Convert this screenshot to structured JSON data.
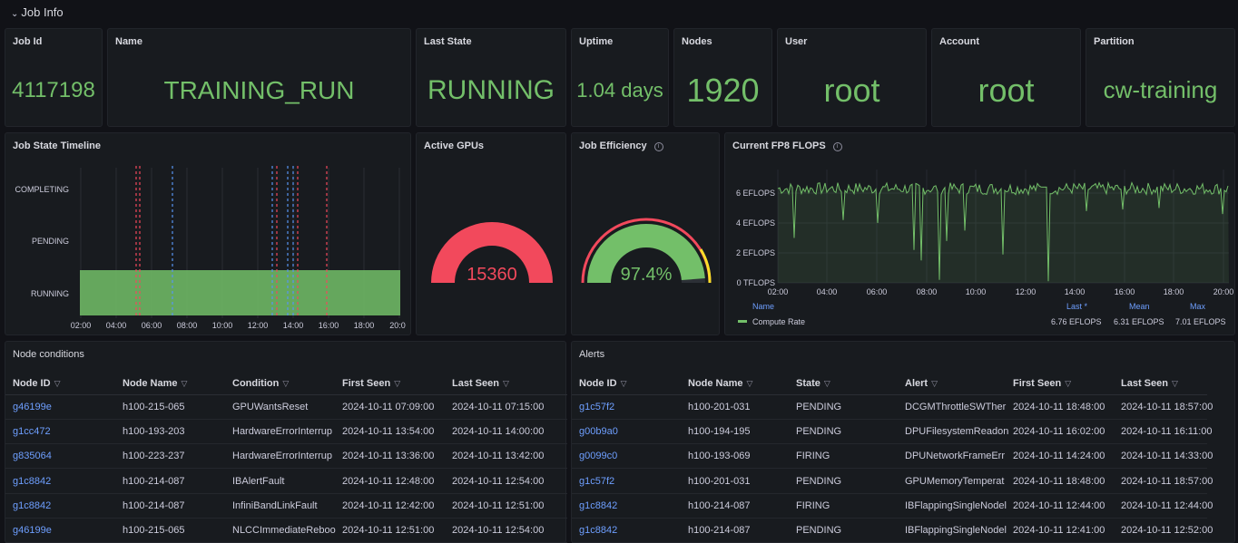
{
  "row": {
    "title": "Job Info"
  },
  "stats": {
    "job_id": {
      "title": "Job Id",
      "value": "4117198"
    },
    "name": {
      "title": "Name",
      "value": "TRAINING_RUN"
    },
    "last_state": {
      "title": "Last State",
      "value": "RUNNING"
    },
    "uptime": {
      "title": "Uptime",
      "value": "1.04 days"
    },
    "nodes": {
      "title": "Nodes",
      "value": "1920"
    },
    "user": {
      "title": "User",
      "value": "root"
    },
    "account": {
      "title": "Account",
      "value": "root"
    },
    "partition": {
      "title": "Partition",
      "value": "cw-training"
    }
  },
  "timeline": {
    "title": "Job State Timeline",
    "states": [
      "COMPLETING",
      "PENDING",
      "RUNNING"
    ],
    "ticks": [
      "02:00",
      "04:00",
      "06:00",
      "08:00",
      "10:00",
      "12:00",
      "14:00",
      "16:00",
      "18:00",
      "20:0"
    ]
  },
  "gpus": {
    "title": "Active GPUs",
    "value": "15360",
    "color": "#f2495c"
  },
  "efficiency": {
    "title": "Job Efficiency",
    "value": "97.4%",
    "fraction": 0.974,
    "color": "#73bf69"
  },
  "flops": {
    "title": "Current FP8 FLOPS",
    "yticks": [
      "6 EFLOPS",
      "4 EFLOPS",
      "2 EFLOPS",
      "0 TFLOPS"
    ],
    "xticks": [
      "02:00",
      "04:00",
      "06:00",
      "08:00",
      "10:00",
      "12:00",
      "14:00",
      "16:00",
      "18:00",
      "20:00"
    ],
    "legend": {
      "name_header": "Name",
      "last_header": "Last *",
      "mean_header": "Mean",
      "max_header": "Max",
      "series": "Compute Rate",
      "last": "6.76 EFLOPS",
      "mean": "6.31 EFLOPS",
      "max": "7.01 EFLOPS"
    }
  },
  "node_conditions": {
    "title": "Node conditions",
    "headers": [
      "Node ID",
      "Node Name",
      "Condition",
      "First Seen",
      "Last Seen"
    ],
    "rows": [
      [
        "g46199e",
        "h100-215-065",
        "GPUWantsReset",
        "2024-10-11 07:09:00",
        "2024-10-11 07:15:00"
      ],
      [
        "g1cc472",
        "h100-193-203",
        "HardwareErrorInterrup",
        "2024-10-11 13:54:00",
        "2024-10-11 14:00:00"
      ],
      [
        "g835064",
        "h100-223-237",
        "HardwareErrorInterrup",
        "2024-10-11 13:36:00",
        "2024-10-11 13:42:00"
      ],
      [
        "g1c8842",
        "h100-214-087",
        "IBAlertFault",
        "2024-10-11 12:48:00",
        "2024-10-11 12:54:00"
      ],
      [
        "g1c8842",
        "h100-214-087",
        "InfiniBandLinkFault",
        "2024-10-11 12:42:00",
        "2024-10-11 12:51:00"
      ],
      [
        "g46199e",
        "h100-215-065",
        "NLCCImmediateReboo",
        "2024-10-11 12:51:00",
        "2024-10-11 12:54:00"
      ]
    ]
  },
  "alerts": {
    "title": "Alerts",
    "headers": [
      "Node ID",
      "Node Name",
      "State",
      "Alert",
      "First Seen",
      "Last Seen"
    ],
    "rows": [
      [
        "g1c57f2",
        "h100-201-031",
        "PENDING",
        "DCGMThrottleSWTher",
        "2024-10-11 18:48:00",
        "2024-10-11 18:57:00"
      ],
      [
        "g00b9a0",
        "h100-194-195",
        "PENDING",
        "DPUFilesystemReadon",
        "2024-10-11 16:02:00",
        "2024-10-11 16:11:00"
      ],
      [
        "g0099c0",
        "h100-193-069",
        "FIRING",
        "DPUNetworkFrameErr",
        "2024-10-11 14:24:00",
        "2024-10-11 14:33:00"
      ],
      [
        "g1c57f2",
        "h100-201-031",
        "PENDING",
        "GPUMemoryTemperat",
        "2024-10-11 18:48:00",
        "2024-10-11 18:57:00"
      ],
      [
        "g1c8842",
        "h100-214-087",
        "FIRING",
        "IBFlappingSingleNodel",
        "2024-10-11 12:44:00",
        "2024-10-11 12:44:00"
      ],
      [
        "g1c8842",
        "h100-214-087",
        "PENDING",
        "IBFlappingSingleNodel",
        "2024-10-11 12:41:00",
        "2024-10-11 12:52:00"
      ]
    ]
  }
}
